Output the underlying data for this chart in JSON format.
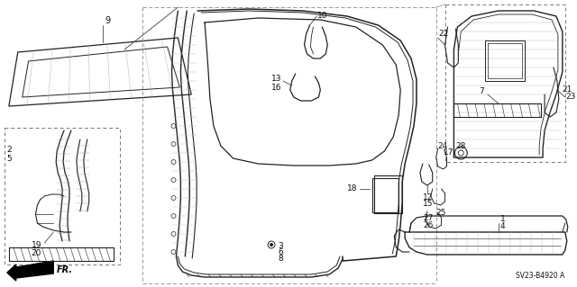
{
  "background_color": "#ffffff",
  "line_color": "#222222",
  "text_color": "#111111",
  "figsize": [
    6.4,
    3.19
  ],
  "dpi": 100,
  "diagram_ref": "SV23-B4920 A"
}
